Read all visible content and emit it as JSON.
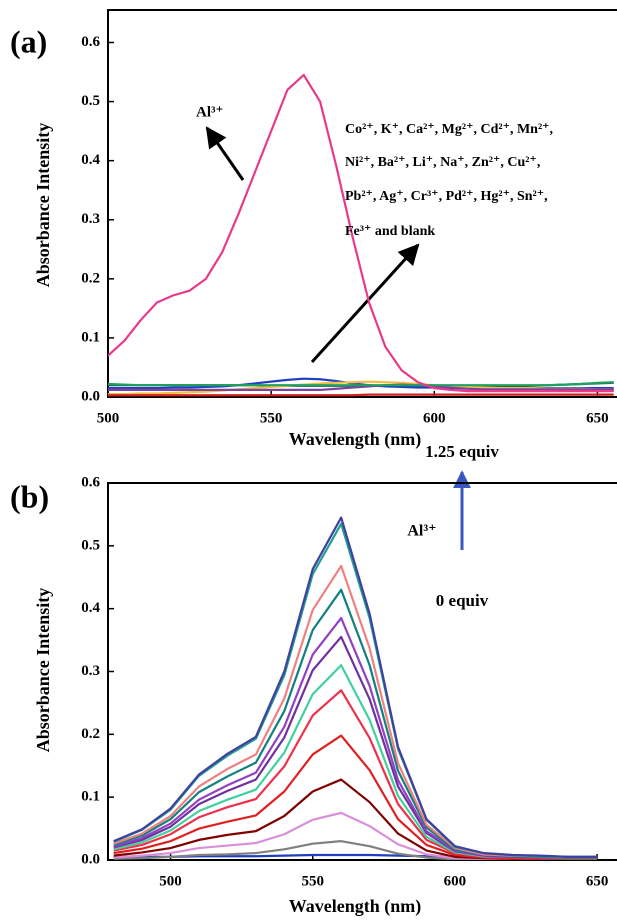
{
  "chart_data": [
    {
      "type": "line",
      "panel_label": "(a)",
      "x_label": "Wavelength (nm)",
      "y_label": "Absorbance Intensity",
      "annotations": [
        "Al³⁺",
        "Co²⁺, K⁺, Ca²⁺, Mg²⁺, Cd²⁺, Mn²⁺,",
        "Ni²⁺, Ba²⁺, Li⁺, Na⁺, Zn²⁺, Cu²⁺,",
        "Pb²⁺, Ag⁺, Cr³⁺, Pd²⁺, Hg²⁺, Sn²⁺,",
        "Fe³⁺ and blank"
      ],
      "xlim": [
        500,
        656
      ],
      "ylim": [
        0,
        0.655
      ],
      "xticks": [
        500,
        550,
        600,
        650
      ],
      "yticks": [
        {
          "value": 0,
          "label": "0.0"
        },
        0.1,
        0.2,
        0.3,
        0.4,
        0.5,
        0.6
      ],
      "x": [
        500,
        505,
        510,
        515,
        520,
        525,
        530,
        535,
        540,
        545,
        550,
        555,
        560,
        565,
        570,
        575,
        580,
        585,
        590,
        595,
        600,
        605,
        610,
        615,
        620,
        625,
        630,
        635,
        640,
        645,
        650,
        655
      ],
      "series": [
        {
          "color": "#1a5a5a",
          "values": [
            0.02,
            0.02,
            0.02,
            0.02,
            0.02,
            0.02,
            0.02,
            0.02,
            0.02,
            0.02,
            0.019,
            0.019,
            0.019,
            0.019,
            0.019,
            0.019,
            0.019,
            0.019,
            0.019,
            0.019,
            0.018,
            0.018,
            0.018,
            0.018,
            0.018,
            0.018,
            0.019,
            0.02,
            0.021,
            0.022,
            0.023,
            0.024
          ]
        },
        {
          "color": "#2040c0",
          "values": [
            0.015,
            0.015,
            0.015,
            0.015,
            0.016,
            0.016,
            0.017,
            0.018,
            0.02,
            0.023,
            0.026,
            0.029,
            0.031,
            0.03,
            0.027,
            0.023,
            0.02,
            0.018,
            0.017,
            0.016,
            0.016,
            0.015,
            0.015,
            0.015,
            0.015,
            0.015,
            0.015,
            0.015,
            0.015,
            0.015,
            0.015,
            0.015
          ]
        },
        {
          "color": "#f0c040",
          "values": [
            0.005,
            0.005,
            0.006,
            0.006,
            0.007,
            0.008,
            0.009,
            0.011,
            0.013,
            0.015,
            0.017,
            0.019,
            0.021,
            0.023,
            0.024,
            0.025,
            0.026,
            0.025,
            0.024,
            0.022,
            0.02,
            0.018,
            0.017,
            0.016,
            0.015,
            0.015,
            0.015,
            0.014,
            0.014,
            0.014,
            0.013,
            0.013
          ]
        },
        {
          "color": "#d02020",
          "values": [
            0.003,
            0.003,
            0.003,
            0.003,
            0.003,
            0.003,
            0.003,
            0.003,
            0.003,
            0.003,
            0.003,
            0.003,
            0.003,
            0.003,
            0.003,
            0.003,
            0.004,
            0.004,
            0.004,
            0.004,
            0.004,
            0.004,
            0.004,
            0.004,
            0.004,
            0.004,
            0.004,
            0.004,
            0.004,
            0.004,
            0.004,
            0.004
          ]
        },
        {
          "color": "#8040a0",
          "values": [
            0.012,
            0.012,
            0.012,
            0.012,
            0.012,
            0.012,
            0.012,
            0.012,
            0.012,
            0.012,
            0.012,
            0.012,
            0.012,
            0.012,
            0.014,
            0.016,
            0.018,
            0.02,
            0.021,
            0.02,
            0.018,
            0.016,
            0.014,
            0.013,
            0.013,
            0.013,
            0.013,
            0.013,
            0.013,
            0.013,
            0.013,
            0.013
          ]
        },
        {
          "color": "#20a060",
          "values": [
            0.022,
            0.021,
            0.02,
            0.02,
            0.02,
            0.02,
            0.02,
            0.02,
            0.02,
            0.02,
            0.02,
            0.02,
            0.02,
            0.02,
            0.02,
            0.02,
            0.02,
            0.02,
            0.02,
            0.02,
            0.02,
            0.02,
            0.02,
            0.02,
            0.02,
            0.02,
            0.02,
            0.02,
            0.021,
            0.022,
            0.024,
            0.025
          ]
        },
        {
          "color": "#e8398a",
          "values": [
            0.07,
            0.095,
            0.13,
            0.16,
            0.172,
            0.18,
            0.2,
            0.245,
            0.31,
            0.38,
            0.45,
            0.52,
            0.545,
            0.5,
            0.39,
            0.27,
            0.16,
            0.085,
            0.045,
            0.025,
            0.015,
            0.012,
            0.01,
            0.01,
            0.01,
            0.01,
            0.01,
            0.01,
            0.01,
            0.01,
            0.01,
            0.01
          ]
        }
      ]
    },
    {
      "type": "line",
      "panel_label": "(b)",
      "x_label": "Wavelength (nm)",
      "y_label": "Absorbance Intensity",
      "annotations": [
        "1.25 equiv",
        "Al³⁺",
        "0 equiv"
      ],
      "xlim": [
        478,
        657
      ],
      "ylim": [
        0,
        0.6
      ],
      "xticks": [
        500,
        550,
        600,
        650
      ],
      "yticks": [
        {
          "value": 0,
          "label": "0.0"
        },
        0.1,
        0.2,
        0.3,
        0.4,
        0.5,
        0.6
      ],
      "x": [
        480,
        490,
        500,
        510,
        520,
        530,
        540,
        550,
        560,
        570,
        580,
        590,
        600,
        610,
        620,
        630,
        640,
        650
      ],
      "series": [
        {
          "color": "#1f3fbf",
          "values": [
            0.004,
            0.005,
            0.005,
            0.006,
            0.006,
            0.006,
            0.007,
            0.008,
            0.008,
            0.008,
            0.007,
            0.006,
            0.006,
            0.005,
            0.005,
            0.005,
            0.005,
            0.005
          ]
        },
        {
          "color": "#808080",
          "values": [
            0.002,
            0.003,
            0.005,
            0.008,
            0.009,
            0.011,
            0.017,
            0.026,
            0.03,
            0.022,
            0.01,
            0.004,
            0.001,
            0.001,
            0.001,
            0.001,
            0.001,
            0.001
          ]
        },
        {
          "color": "#d98fd9",
          "values": [
            0.004,
            0.007,
            0.011,
            0.019,
            0.023,
            0.027,
            0.041,
            0.064,
            0.075,
            0.054,
            0.025,
            0.009,
            0.003,
            0.002,
            0.001,
            0.001,
            0.001,
            0.001
          ]
        },
        {
          "color": "#800000",
          "values": [
            0.007,
            0.012,
            0.019,
            0.032,
            0.04,
            0.046,
            0.07,
            0.109,
            0.128,
            0.092,
            0.042,
            0.015,
            0.005,
            0.003,
            0.002,
            0.002,
            0.001,
            0.001
          ]
        },
        {
          "color": "#e02020",
          "values": [
            0.011,
            0.018,
            0.03,
            0.05,
            0.061,
            0.071,
            0.109,
            0.168,
            0.198,
            0.143,
            0.065,
            0.024,
            0.008,
            0.004,
            0.003,
            0.002,
            0.002,
            0.002
          ]
        },
        {
          "color": "#f0304a",
          "values": [
            0.015,
            0.024,
            0.041,
            0.068,
            0.084,
            0.097,
            0.149,
            0.23,
            0.27,
            0.194,
            0.089,
            0.032,
            0.011,
            0.005,
            0.004,
            0.003,
            0.003,
            0.003
          ]
        },
        {
          "color": "#40d0a0",
          "values": [
            0.017,
            0.028,
            0.047,
            0.078,
            0.096,
            0.112,
            0.171,
            0.264,
            0.31,
            0.223,
            0.102,
            0.037,
            0.012,
            0.006,
            0.005,
            0.004,
            0.003,
            0.003
          ]
        },
        {
          "color": "#7030a0",
          "values": [
            0.02,
            0.032,
            0.053,
            0.089,
            0.11,
            0.128,
            0.195,
            0.302,
            0.355,
            0.256,
            0.117,
            0.043,
            0.014,
            0.007,
            0.005,
            0.004,
            0.004,
            0.004
          ]
        },
        {
          "color": "#9040c0",
          "values": [
            0.021,
            0.035,
            0.058,
            0.096,
            0.119,
            0.139,
            0.212,
            0.327,
            0.385,
            0.277,
            0.127,
            0.046,
            0.015,
            0.008,
            0.006,
            0.005,
            0.004,
            0.004
          ]
        },
        {
          "color": "#108080",
          "values": [
            0.024,
            0.039,
            0.065,
            0.108,
            0.133,
            0.155,
            0.237,
            0.366,
            0.43,
            0.31,
            0.142,
            0.052,
            0.017,
            0.009,
            0.006,
            0.005,
            0.004,
            0.004
          ]
        },
        {
          "color": "#f08080",
          "values": [
            0.026,
            0.042,
            0.07,
            0.117,
            0.145,
            0.168,
            0.257,
            0.398,
            0.468,
            0.337,
            0.154,
            0.056,
            0.019,
            0.009,
            0.007,
            0.006,
            0.005,
            0.005
          ]
        },
        {
          "color": "#20a090",
          "values": [
            0.029,
            0.048,
            0.08,
            0.134,
            0.166,
            0.193,
            0.294,
            0.455,
            0.535,
            0.385,
            0.177,
            0.064,
            0.021,
            0.011,
            0.008,
            0.006,
            0.005,
            0.005
          ]
        },
        {
          "color": "#4040a0",
          "values": [
            0.03,
            0.049,
            0.082,
            0.136,
            0.169,
            0.196,
            0.3,
            0.463,
            0.545,
            0.392,
            0.18,
            0.065,
            0.022,
            0.011,
            0.008,
            0.007,
            0.005,
            0.005
          ]
        }
      ]
    }
  ]
}
